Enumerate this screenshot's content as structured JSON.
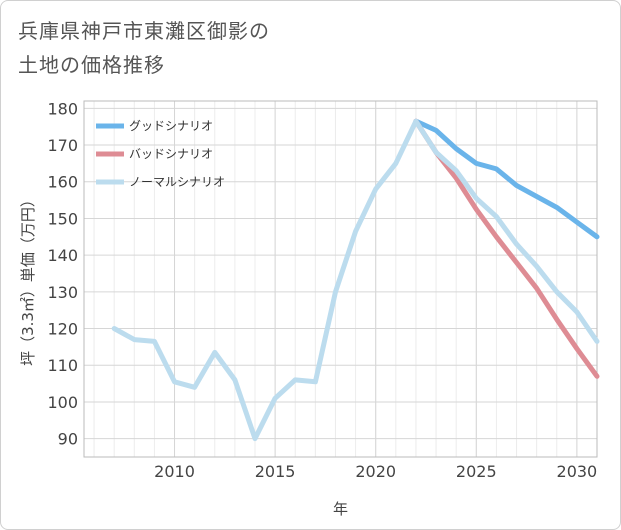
{
  "title_lines": [
    "兵庫県神戸市東灘区御影の",
    "土地の価格推移"
  ],
  "chart_data": {
    "type": "line",
    "title": "兵庫県神戸市東灘区御影の土地の価格推移",
    "xlabel": "年",
    "ylabel": "坪（3.3㎡）単価（万円）",
    "xlim": [
      2005.5,
      2031
    ],
    "ylim": [
      85,
      182
    ],
    "xticks": [
      2010,
      2015,
      2020,
      2025,
      2030
    ],
    "yticks": [
      90,
      100,
      110,
      120,
      130,
      140,
      150,
      160,
      170,
      180
    ],
    "grid": true,
    "legend_position": "top-left",
    "series": [
      {
        "name": "グッドシナリオ",
        "color": "#6ab4ea",
        "x": [
          2022,
          2023,
          2024,
          2025,
          2026,
          2027,
          2028,
          2029,
          2030,
          2031
        ],
        "y": [
          176.5,
          174.0,
          169.0,
          165.0,
          163.5,
          159.0,
          156.0,
          153.0,
          149.0,
          145.0
        ]
      },
      {
        "name": "バッドシナリオ",
        "color": "#de8c94",
        "x": [
          2022,
          2023,
          2024,
          2025,
          2026,
          2027,
          2028,
          2029,
          2030,
          2031
        ],
        "y": [
          176.5,
          168.0,
          161.0,
          152.5,
          145.0,
          138.0,
          131.0,
          122.5,
          114.5,
          107.0
        ]
      },
      {
        "name": "ノーマルシナリオ",
        "color": "#bcdcee",
        "x": [
          2007,
          2008,
          2009,
          2010,
          2011,
          2012,
          2013,
          2014,
          2015,
          2016,
          2017,
          2018,
          2019,
          2020,
          2021,
          2022,
          2023,
          2024,
          2025,
          2026,
          2027,
          2028,
          2029,
          2030,
          2031
        ],
        "y": [
          120.0,
          117.0,
          116.5,
          105.5,
          104.0,
          113.5,
          106.0,
          90.0,
          101.0,
          106.0,
          105.5,
          130.0,
          146.5,
          158.0,
          165.0,
          176.5,
          168.0,
          163.0,
          155.5,
          150.5,
          143.0,
          137.0,
          130.0,
          124.5,
          116.5
        ]
      }
    ]
  }
}
